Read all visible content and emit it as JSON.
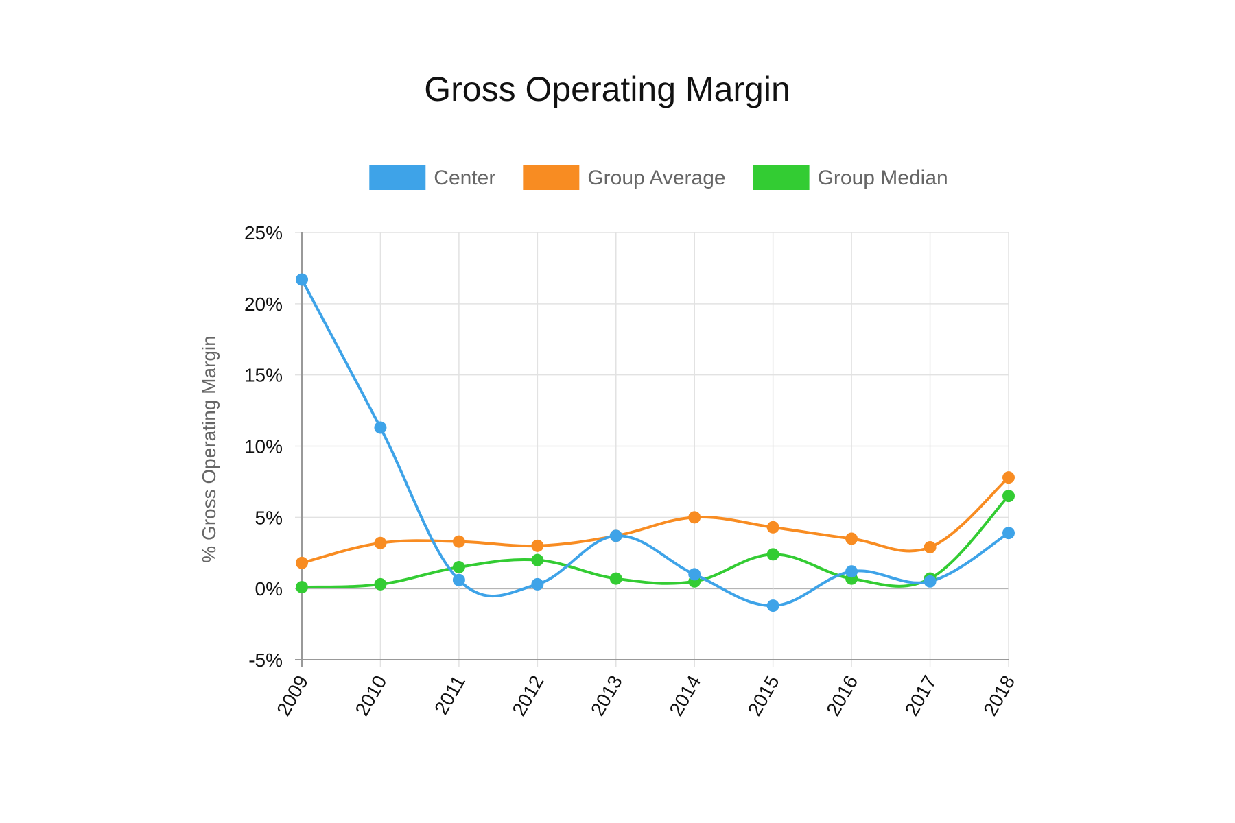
{
  "chart_data": {
    "type": "line",
    "title": "Gross Operating Margin",
    "xlabel": "",
    "ylabel": "% Gross Operating Margin",
    "categories": [
      "2009",
      "2010",
      "2011",
      "2012",
      "2013",
      "2014",
      "2015",
      "2016",
      "2017",
      "2018"
    ],
    "ylim": [
      -5,
      25
    ],
    "yticks": [
      -5,
      0,
      5,
      10,
      15,
      20,
      25
    ],
    "ytick_labels": [
      "-5%",
      "0%",
      "5%",
      "10%",
      "15%",
      "20%",
      "25%"
    ],
    "grid": true,
    "legend_position": "top",
    "smooth": true,
    "series": [
      {
        "name": "Center",
        "color": "#3ea3e8",
        "values": [
          21.7,
          11.3,
          0.6,
          0.3,
          3.7,
          1.0,
          -1.2,
          1.2,
          0.5,
          3.9
        ]
      },
      {
        "name": "Group Average",
        "color": "#f88c22",
        "values": [
          1.8,
          3.2,
          3.3,
          3.0,
          3.7,
          5.0,
          4.3,
          3.5,
          2.9,
          7.8
        ]
      },
      {
        "name": "Group Median",
        "color": "#33cc33",
        "values": [
          0.1,
          0.3,
          1.5,
          2.0,
          0.7,
          0.5,
          2.4,
          0.7,
          0.7,
          6.5
        ]
      }
    ]
  }
}
